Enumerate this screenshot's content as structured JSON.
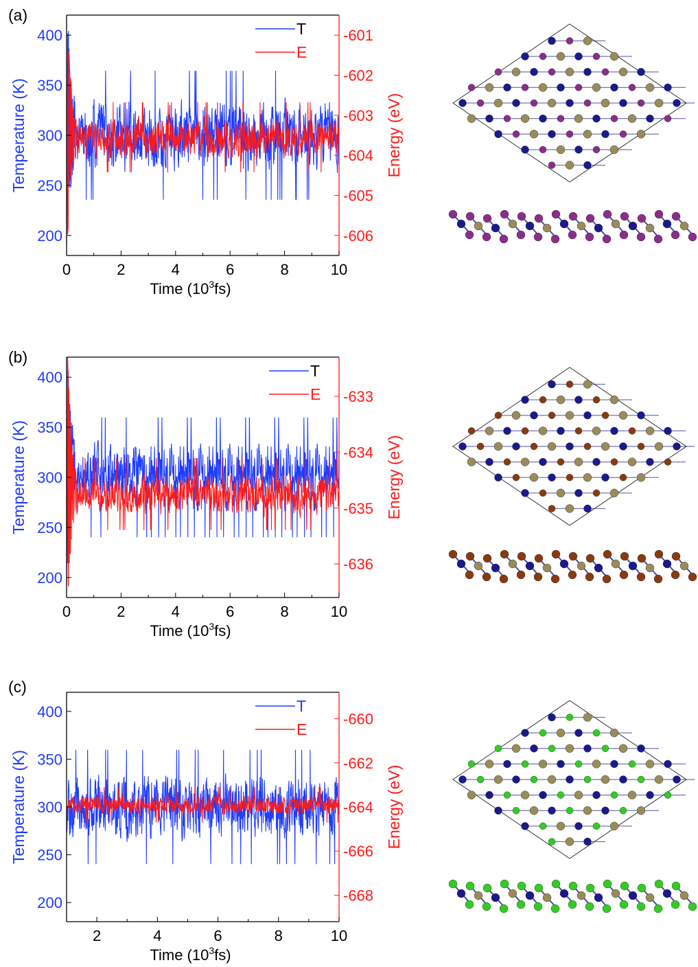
{
  "colors": {
    "temperature": "#1f3cff",
    "energy": "#ff1a1a",
    "axis": "#000000",
    "atom_metal": "#1a1a8c",
    "atom_chalcogen": "#9a8c5a",
    "atom_halogen_a": "#8a2e8a",
    "atom_halogen_b": "#8a3a10",
    "atom_halogen_c": "#33cc22"
  },
  "chart_data": [
    {
      "panel_label": "(a)",
      "type": "line",
      "xlabel_main": "Time (10",
      "xlabel_sup": "3",
      "xlabel_end": "fs)",
      "ylabel_left": "Temperature (K)",
      "ylabel_right": "Energy (eV)",
      "xlim": [
        0,
        10
      ],
      "ylim_left": [
        180,
        420
      ],
      "ylim_right": [
        -606.5,
        -600.5
      ],
      "xticks": [
        "0",
        "2",
        "4",
        "6",
        "8",
        "10"
      ],
      "yticks_left": [
        "200",
        "250",
        "300",
        "350",
        "400"
      ],
      "yticks_right": [
        "-606",
        "-605",
        "-604",
        "-603",
        "-602",
        "-601"
      ],
      "series": [
        {
          "name": "T",
          "axis": "left",
          "color": "temperature",
          "mean": 300,
          "amp": 28,
          "start": 190,
          "peak": 410,
          "seed": 11
        },
        {
          "name": "E",
          "axis": "right",
          "color": "energy",
          "mean": -603.55,
          "amp": 0.38,
          "start": -606.2,
          "peak": -600.6,
          "seed": 23
        }
      ],
      "legend_style": "plain"
    },
    {
      "panel_label": "(b)",
      "type": "line",
      "xlabel_main": "Time (10",
      "xlabel_sup": "3",
      "xlabel_end": "fs)",
      "ylabel_left": "Temperature (K)",
      "ylabel_right": "Energy (eV)",
      "xlim": [
        0,
        10
      ],
      "ylim_left": [
        180,
        420
      ],
      "ylim_right": [
        -636.6,
        -632.3
      ],
      "xticks": [
        "0",
        "2",
        "4",
        "6",
        "8",
        "10"
      ],
      "yticks_left": [
        "200",
        "250",
        "300",
        "350",
        "400"
      ],
      "yticks_right": [
        "-636",
        "-635",
        "-634",
        "-633"
      ],
      "series": [
        {
          "name": "T",
          "axis": "left",
          "color": "temperature",
          "mean": 300,
          "amp": 26,
          "start": 192,
          "peak": 415,
          "seed": 37
        },
        {
          "name": "E",
          "axis": "right",
          "color": "energy",
          "mean": -634.75,
          "amp": 0.28,
          "start": -636.0,
          "peak": -632.3,
          "seed": 41
        }
      ],
      "legend_style": "plain"
    },
    {
      "panel_label": "(c)",
      "type": "line",
      "xlabel_main": "Time (10",
      "xlabel_sup": "3",
      "xlabel_end": "fs)",
      "ylabel_left": "Temperature (K)",
      "ylabel_right": "Energy (eV)",
      "xlim": [
        1,
        10
      ],
      "ylim_left": [
        180,
        420
      ],
      "ylim_right": [
        -669.2,
        -658.8
      ],
      "xticks": [
        "2",
        "4",
        "6",
        "8",
        "10"
      ],
      "yticks_left": [
        "200",
        "250",
        "300",
        "350",
        "400"
      ],
      "yticks_right": [
        "-668",
        "-666",
        "-664",
        "-662",
        "-660"
      ],
      "series": [
        {
          "name": "T",
          "axis": "left",
          "color": "temperature",
          "mean": 300,
          "amp": 26,
          "start": 300,
          "peak": 300,
          "seed": 53
        },
        {
          "name": "E",
          "axis": "right",
          "color": "energy",
          "mean": -663.9,
          "amp": 0.35,
          "start": -663.9,
          "peak": -663.9,
          "seed": 67
        }
      ],
      "legend_style": "colored"
    }
  ],
  "structures": [
    {
      "halogen_color": "atom_halogen_a"
    },
    {
      "halogen_color": "atom_halogen_b"
    },
    {
      "halogen_color": "atom_halogen_c"
    }
  ]
}
